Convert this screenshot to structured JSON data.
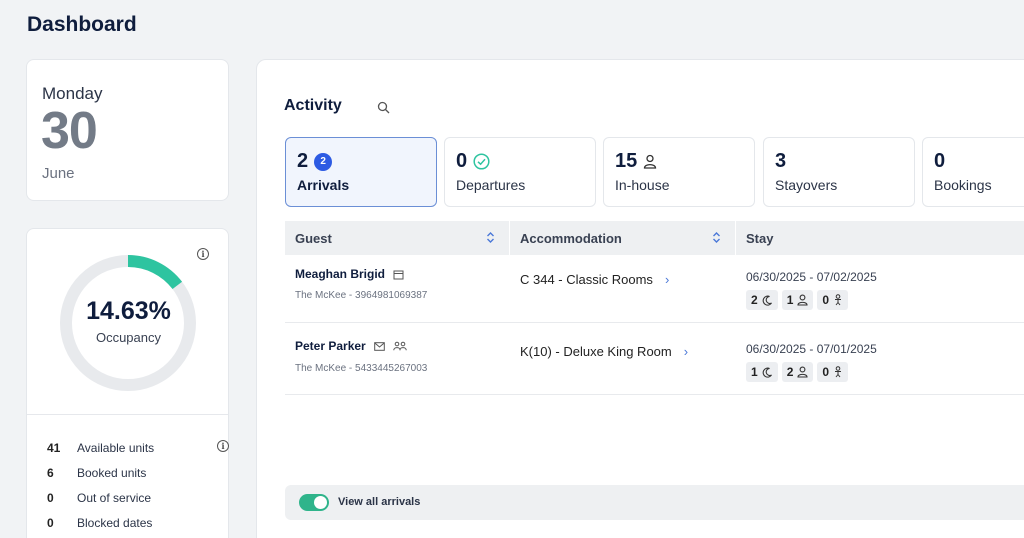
{
  "page_title": "Dashboard",
  "date_card": {
    "weekday": "Monday",
    "day": "30",
    "month": "June"
  },
  "occupancy": {
    "percent_label": "14.63%",
    "percent_value": 14.63,
    "label": "Occupancy",
    "ring_color": "#2ec4a0",
    "units": [
      {
        "count": "41",
        "label": "Available units",
        "has_info": true
      },
      {
        "count": "6",
        "label": "Booked units",
        "has_info": false
      },
      {
        "count": "0",
        "label": "Out of service",
        "has_info": false
      },
      {
        "count": "0",
        "label": "Blocked dates",
        "has_info": false
      }
    ]
  },
  "activity": {
    "title": "Activity",
    "tabs": [
      {
        "count": "2",
        "badge": "2",
        "label": "Arrivals",
        "icon": "",
        "active": true
      },
      {
        "count": "0",
        "badge": "",
        "label": "Departures",
        "icon": "check-circle-icon",
        "active": false
      },
      {
        "count": "15",
        "badge": "",
        "label": "In-house",
        "icon": "person-icon",
        "active": false
      },
      {
        "count": "3",
        "badge": "",
        "label": "Stayovers",
        "icon": "",
        "active": false
      },
      {
        "count": "0",
        "badge": "",
        "label": "Bookings",
        "icon": "",
        "active": false
      }
    ],
    "columns": {
      "guest": "Guest",
      "accommodation": "Accommodation",
      "stay": "Stay"
    },
    "rows": [
      {
        "name": "Meaghan Brigid",
        "sub": "The McKee - 3964981069387",
        "icons": [
          "calendar-icon"
        ],
        "accommodation": "C 344 - Classic Rooms",
        "dates": "06/30/2025 - 07/02/2025",
        "nights": "2",
        "adults": "1",
        "children": "0"
      },
      {
        "name": "Peter Parker",
        "sub": "The McKee - 5433445267003",
        "icons": [
          "mail-icon",
          "group-icon"
        ],
        "accommodation": "K(10) - Deluxe King Room",
        "dates": "06/30/2025 - 07/01/2025",
        "nights": "1",
        "adults": "2",
        "children": "0"
      }
    ],
    "footer_toggle_label": "View all arrivals"
  }
}
